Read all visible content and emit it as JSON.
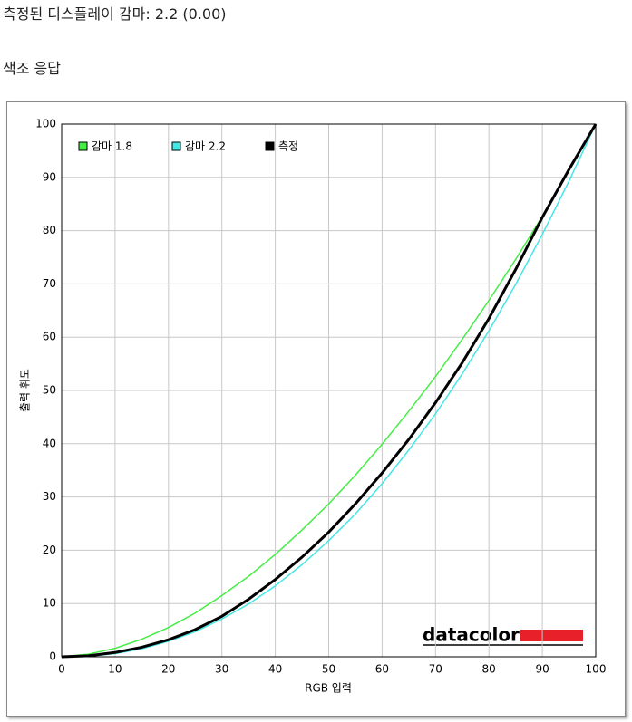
{
  "heading": "측정된 디스플레이 감마: 2.2 (0.00)",
  "subheading": "색조 응답",
  "logo": "datacolor",
  "chart_data": {
    "type": "line",
    "xlabel": "RGB 입력",
    "ylabel": "출력 휘도",
    "x": [
      0,
      5,
      10,
      15,
      20,
      25,
      30,
      35,
      40,
      45,
      50,
      55,
      60,
      65,
      70,
      75,
      80,
      85,
      90,
      95,
      100
    ],
    "series": [
      {
        "name": "감마 1.8",
        "color": "#44ee44",
        "values": [
          0,
          0.5,
          1.6,
          3.3,
          5.5,
          8.2,
          11.5,
          15.1,
          19.2,
          23.8,
          28.7,
          34.1,
          39.9,
          46.1,
          52.6,
          59.6,
          66.9,
          74.6,
          82.7,
          91.2,
          100
        ]
      },
      {
        "name": "감마 2.2",
        "color": "#44e6e6",
        "values": [
          0,
          0.1,
          0.6,
          1.5,
          2.9,
          4.7,
          7.1,
          9.9,
          13.3,
          17.3,
          21.8,
          26.8,
          32.5,
          38.8,
          45.6,
          53.1,
          61.2,
          69.9,
          79.3,
          89.3,
          100
        ]
      },
      {
        "name": "측정",
        "color": "#000000",
        "values": [
          0,
          0.2,
          0.8,
          1.8,
          3.2,
          5.1,
          7.6,
          10.8,
          14.5,
          18.7,
          23.4,
          28.7,
          34.5,
          40.8,
          47.7,
          55.2,
          63.5,
          72.7,
          82.5,
          91.5,
          100
        ]
      }
    ],
    "xlim": [
      0,
      100
    ],
    "ylim": [
      0,
      100
    ],
    "xticks": [
      0,
      10,
      20,
      30,
      40,
      50,
      60,
      70,
      80,
      90,
      100
    ],
    "yticks": [
      0,
      10,
      20,
      30,
      40,
      50,
      60,
      70,
      80,
      90,
      100
    ],
    "grid": true
  }
}
